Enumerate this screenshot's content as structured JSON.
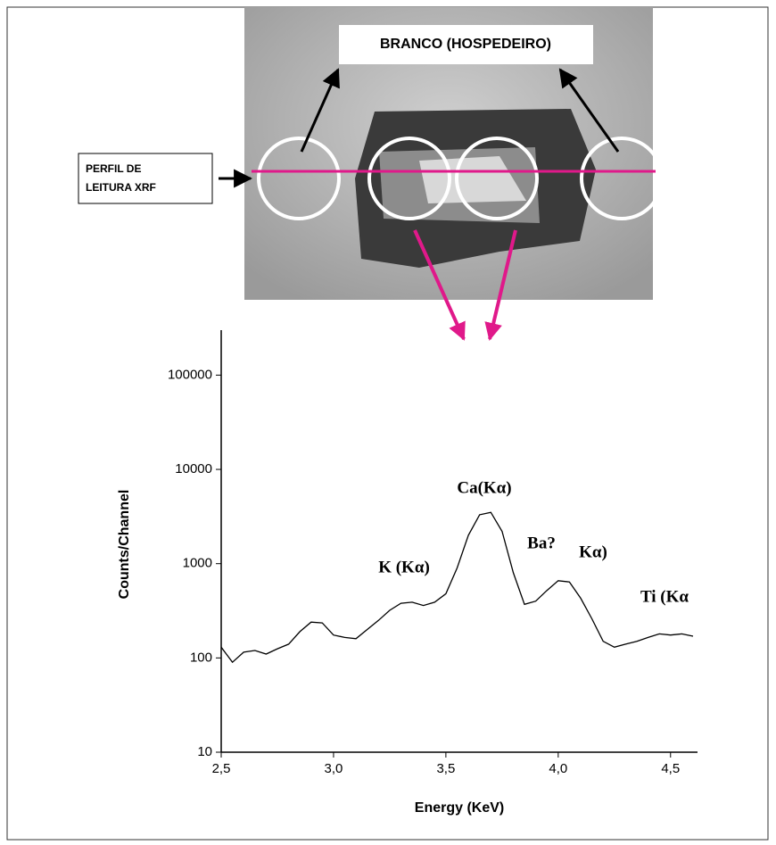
{
  "photo": {
    "host_label": "BRANCO (HOSPEDEIRO)",
    "profile_label": [
      "PERFIL DE",
      "LEITURA XRF"
    ]
  },
  "chart_data": {
    "type": "line",
    "xlabel": "Energy (KeV)",
    "ylabel": "Counts/Channel",
    "yscale": "log",
    "color": "#000000",
    "xlim": [
      2.5,
      4.62
    ],
    "ylim": [
      10,
      300000
    ],
    "xticks": [
      {
        "value": 2.5,
        "label": "2,5"
      },
      {
        "value": 3.0,
        "label": "3,0"
      },
      {
        "value": 3.5,
        "label": "3,5"
      },
      {
        "value": 4.0,
        "label": "4,0"
      },
      {
        "value": 4.5,
        "label": "4,5"
      }
    ],
    "yticks": [
      10,
      100,
      1000,
      10000,
      100000
    ],
    "x": [
      2.5,
      2.55,
      2.6,
      2.65,
      2.7,
      2.75,
      2.8,
      2.85,
      2.9,
      2.95,
      3.0,
      3.05,
      3.1,
      3.15,
      3.2,
      3.25,
      3.3,
      3.35,
      3.4,
      3.45,
      3.5,
      3.55,
      3.6,
      3.65,
      3.7,
      3.75,
      3.8,
      3.85,
      3.9,
      3.95,
      4.0,
      4.05,
      4.1,
      4.15,
      4.2,
      4.25,
      4.3,
      4.35,
      4.4,
      4.45,
      4.5,
      4.55,
      4.6
    ],
    "values": [
      130,
      90,
      115,
      120,
      110,
      125,
      140,
      190,
      240,
      235,
      175,
      165,
      160,
      200,
      250,
      320,
      380,
      390,
      360,
      390,
      480,
      900,
      2000,
      3300,
      3500,
      2200,
      800,
      370,
      400,
      520,
      660,
      640,
      430,
      260,
      150,
      130,
      140,
      150,
      165,
      180,
      175,
      180,
      170
    ],
    "annotations": [
      "Ca(Kα)",
      "Ba?",
      "Kα)",
      "K (Kα)",
      "Ti (Kα"
    ]
  }
}
